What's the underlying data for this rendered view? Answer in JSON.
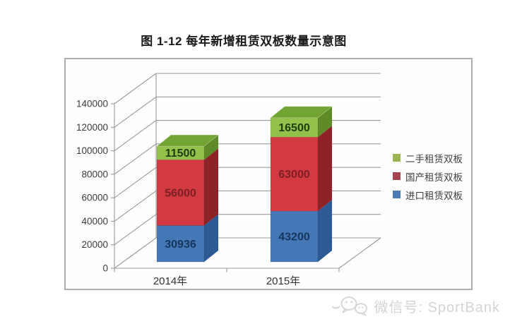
{
  "page": {
    "title": "图 1-12 每年新增租赁双板数量示意图"
  },
  "watermark": {
    "icon": "wechat-icon",
    "text": "微信号: SportBank",
    "color": "#d4d4d4"
  },
  "chart_data": {
    "type": "bar",
    "subtype": "stacked-column-3d",
    "title": "图 1-12 每年新增租赁双板数量示意图",
    "categories": [
      "2014年",
      "2015年"
    ],
    "series": [
      {
        "name": "进口租赁双板",
        "values": [
          30936,
          43200
        ],
        "color": "#4d7ab0",
        "color_front": "#4478b6",
        "color_side": "#2d5a94",
        "value_label_color": "#17365d"
      },
      {
        "name": "国产租赁双板",
        "values": [
          56000,
          63000
        ],
        "color": "#a64550",
        "color_front": "#d23940",
        "color_side": "#8d2327",
        "value_label_color": "#7c1f24"
      },
      {
        "name": "二手租赁双板",
        "values": [
          11500,
          16500
        ],
        "color": "#9ab454",
        "color_front": "#93c14b",
        "color_side": "#5e8b28",
        "color_top": "#72a433",
        "value_label_color": "#1d3d10"
      }
    ],
    "totals": [
      98436,
      122700
    ],
    "ylim": [
      0,
      140000
    ],
    "ytick_step": 20000,
    "yticks": [
      0,
      20000,
      40000,
      60000,
      80000,
      100000,
      120000,
      140000
    ],
    "grid": true,
    "legend_position": "right",
    "value_labels": true
  }
}
